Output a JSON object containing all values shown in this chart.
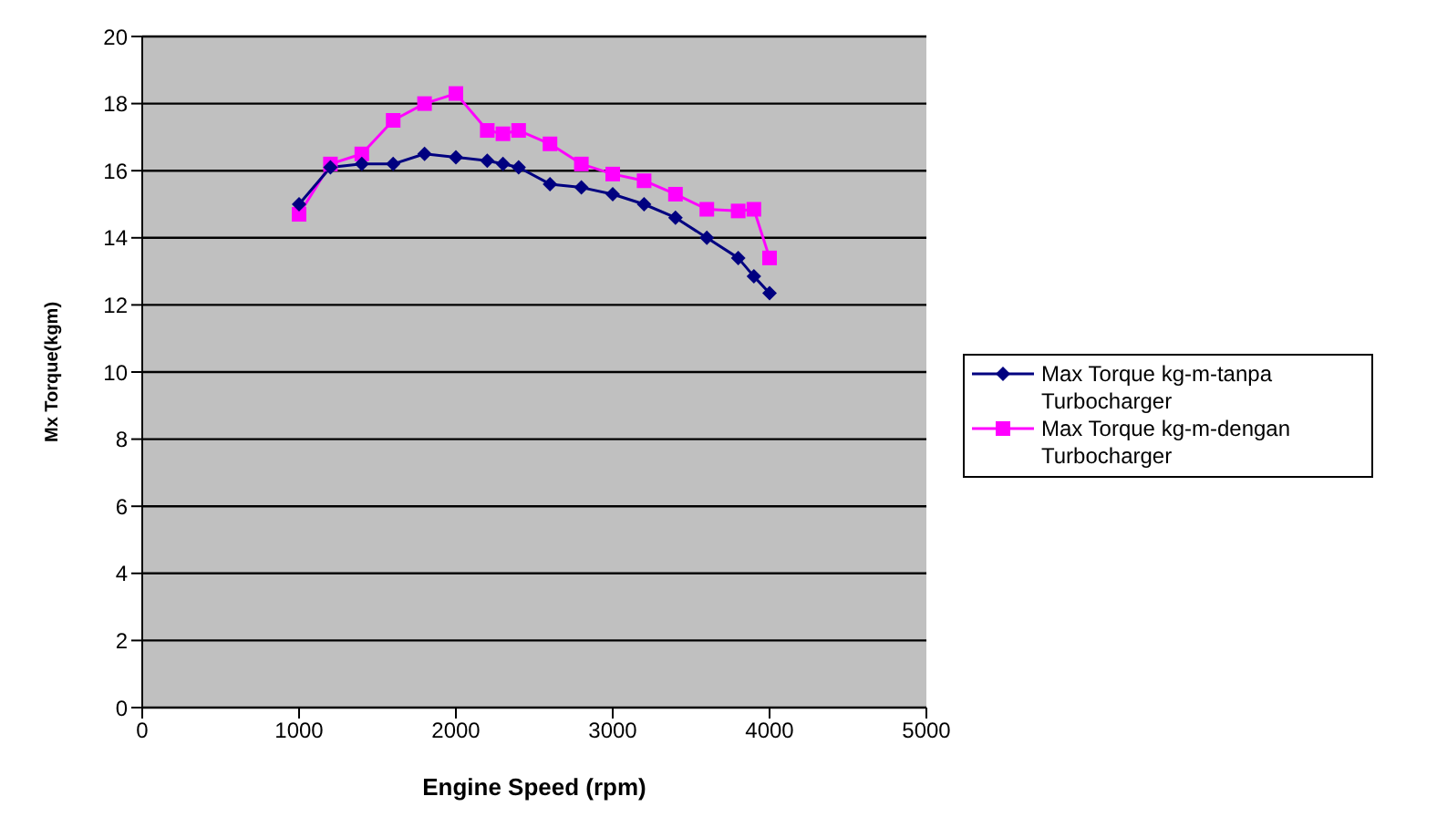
{
  "chart_data": {
    "type": "line",
    "xlabel": "Engine Speed (rpm)",
    "ylabel": "Mx Torque(kgm)",
    "xlim": [
      0,
      5000
    ],
    "xticks": [
      0,
      1000,
      2000,
      3000,
      4000,
      5000
    ],
    "ylim": [
      0,
      20
    ],
    "yticks": [
      0,
      2,
      4,
      6,
      8,
      10,
      12,
      14,
      16,
      18,
      20
    ],
    "grid": "y",
    "legend": "right",
    "series": [
      {
        "name": "Max Torque kg-m-tanpa Turbocharger",
        "color": "#000080",
        "marker": "diamond",
        "x": [
          1000,
          1200,
          1400,
          1600,
          1800,
          2000,
          2200,
          2300,
          2400,
          2600,
          2800,
          3000,
          3200,
          3400,
          3600,
          3800,
          3900,
          4000
        ],
        "values": [
          15.0,
          16.1,
          16.2,
          16.2,
          16.5,
          16.4,
          16.3,
          16.2,
          16.1,
          15.6,
          15.5,
          15.3,
          15.0,
          14.6,
          14.0,
          13.4,
          12.85,
          12.35
        ]
      },
      {
        "name": "Max Torque kg-m-dengan Turbocharger",
        "color": "#ff00ff",
        "marker": "square",
        "x": [
          1000,
          1200,
          1400,
          1600,
          1800,
          2000,
          2200,
          2300,
          2400,
          2600,
          2800,
          3000,
          3200,
          3400,
          3600,
          3800,
          3900,
          4000
        ],
        "values": [
          14.7,
          16.2,
          16.5,
          17.5,
          18.0,
          18.3,
          17.2,
          17.1,
          17.2,
          16.8,
          16.2,
          15.9,
          15.7,
          15.3,
          14.85,
          14.8,
          14.85,
          13.4
        ]
      }
    ]
  }
}
